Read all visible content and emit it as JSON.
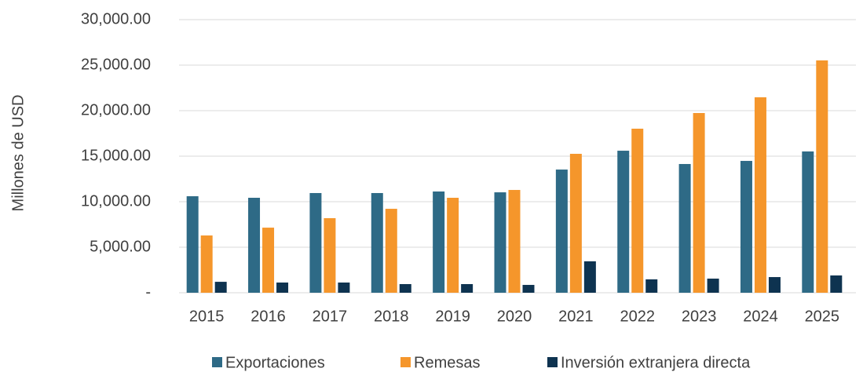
{
  "chart_data": {
    "type": "bar",
    "y_label": "Millones de USD",
    "categories": [
      "2015",
      "2016",
      "2017",
      "2018",
      "2019",
      "2020",
      "2021",
      "2022",
      "2023",
      "2024",
      "2025"
    ],
    "series": [
      {
        "name": "Exportaciones",
        "color": "#2e6a86",
        "values": [
          10600,
          10430,
          10950,
          10950,
          11120,
          11030,
          13530,
          15600,
          14140,
          14480,
          15520
        ]
      },
      {
        "name": "Remesas",
        "color": "#f5962b",
        "values": [
          6290,
          7150,
          8190,
          9220,
          10430,
          11290,
          15260,
          18020,
          19740,
          21470,
          25520
        ]
      },
      {
        "name": "Inversión extranjera directa",
        "color": "#0e3350",
        "values": [
          1200,
          1120,
          1120,
          950,
          950,
          860,
          3450,
          1470,
          1550,
          1720,
          1900
        ]
      }
    ],
    "ylim": [
      0,
      30000
    ],
    "yticks": [
      {
        "value": 0,
        "label": "-"
      },
      {
        "value": 5000,
        "label": "5,000.00"
      },
      {
        "value": 10000,
        "label": "10,000.00"
      },
      {
        "value": 15000,
        "label": "15,000.00"
      },
      {
        "value": 20000,
        "label": "20,000.00"
      },
      {
        "value": 25000,
        "label": "25,000.00"
      },
      {
        "value": 30000,
        "label": "30,000.00"
      }
    ],
    "grid": true,
    "legend": "bottom"
  }
}
